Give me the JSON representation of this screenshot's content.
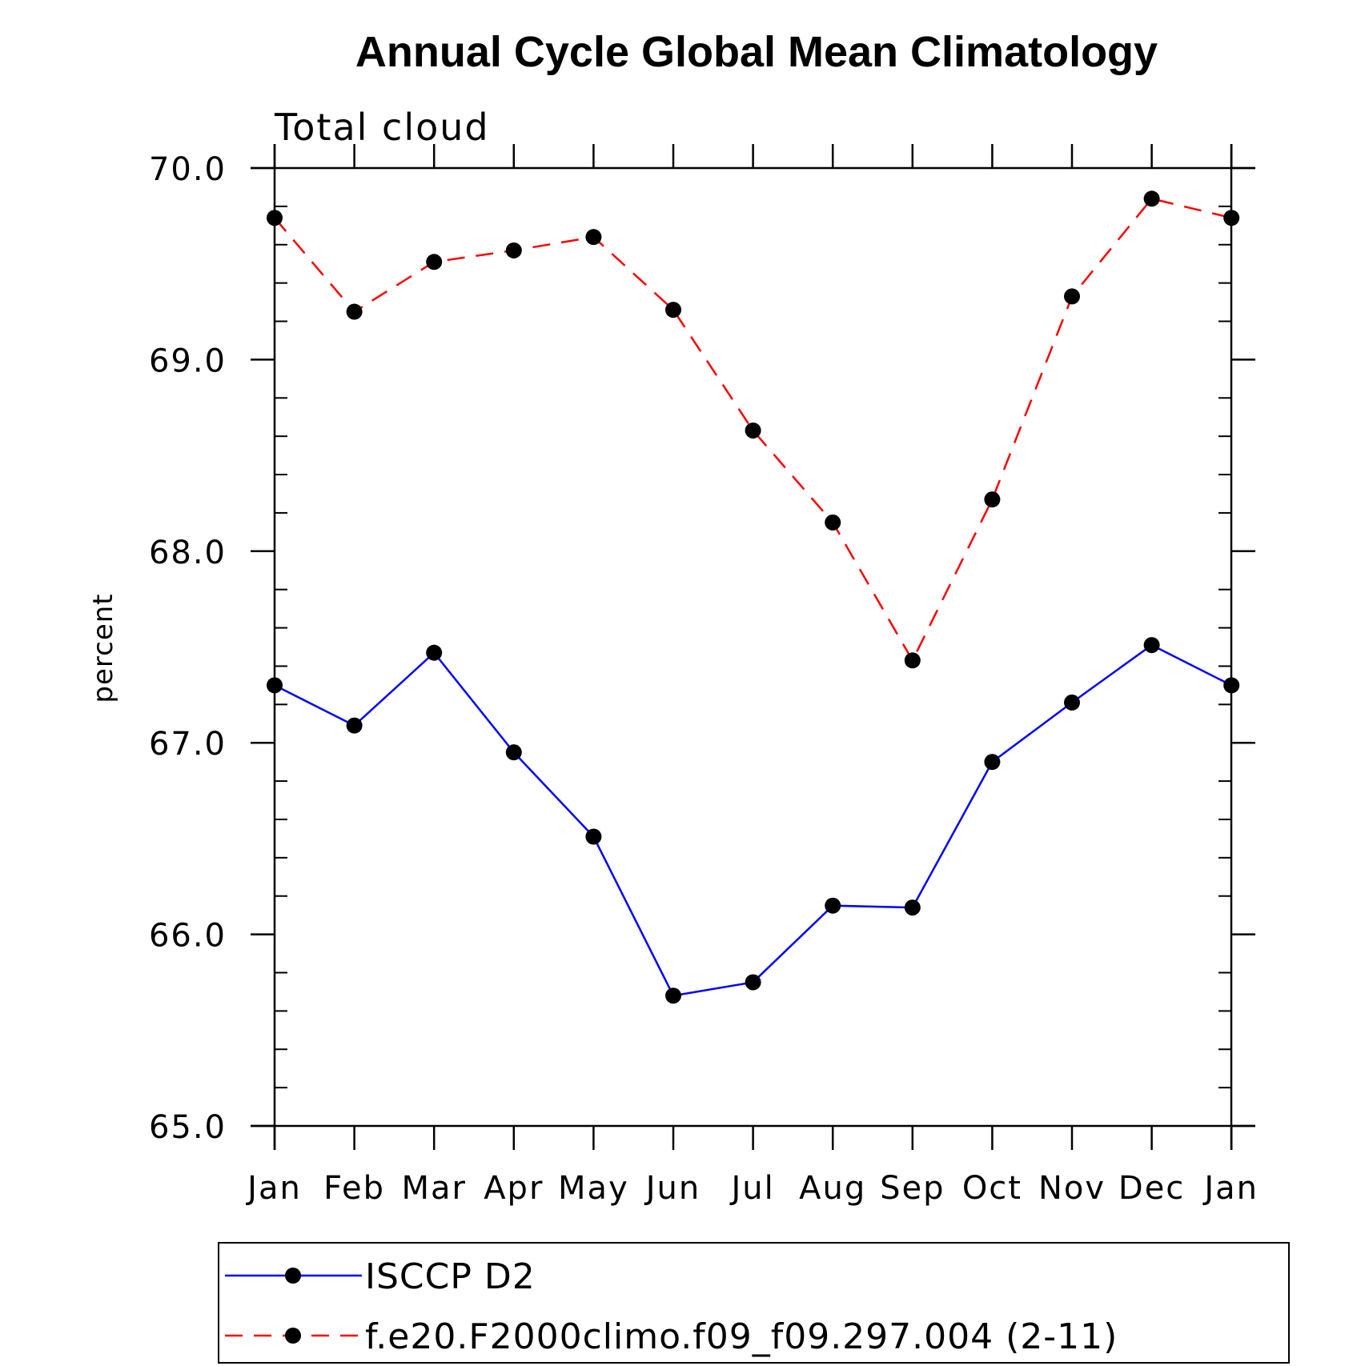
{
  "chart_data": {
    "type": "line",
    "title": "Annual Cycle Global Mean Climatology",
    "subtitle": "Total cloud",
    "xlabel": "",
    "ylabel": "percent",
    "categories": [
      "Jan",
      "Feb",
      "Mar",
      "Apr",
      "May",
      "Jun",
      "Jul",
      "Aug",
      "Sep",
      "Oct",
      "Nov",
      "Dec",
      "Jan"
    ],
    "ylim": [
      65.0,
      70.0
    ],
    "yticks": [
      "65.0",
      "66.0",
      "67.0",
      "68.0",
      "69.0",
      "70.0"
    ],
    "grid": false,
    "legend_position": "bottom",
    "series": [
      {
        "name": "ISCCP D2",
        "color": "#0000ff",
        "dash": "solid",
        "marker": "filled-circle",
        "values": [
          67.3,
          67.09,
          67.47,
          66.95,
          66.51,
          65.68,
          65.75,
          66.15,
          66.14,
          66.9,
          67.21,
          67.51,
          67.3
        ]
      },
      {
        "name": "f.e20.F2000climo.f09_f09.297.004 (2-11)",
        "color": "#ff0000",
        "dash": "dashed",
        "marker": "filled-circle",
        "values": [
          69.74,
          69.25,
          69.51,
          69.57,
          69.64,
          69.26,
          68.63,
          68.15,
          67.43,
          68.27,
          69.33,
          69.84,
          69.74
        ]
      }
    ]
  }
}
